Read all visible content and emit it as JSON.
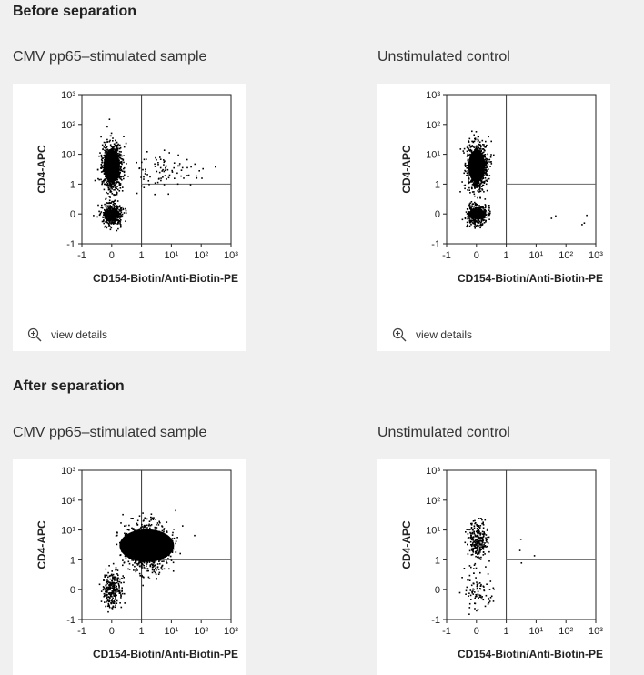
{
  "sections": [
    {
      "title": "Before separation",
      "panels": [
        {
          "caption": "CMV pp65–stimulated sample",
          "details": "view details"
        },
        {
          "caption": "Unstimulated control",
          "details": "view details"
        }
      ]
    },
    {
      "title": "After separation",
      "panels": [
        {
          "caption": "CMV pp65–stimulated sample",
          "details": ""
        },
        {
          "caption": "Unstimulated control",
          "details": ""
        }
      ]
    }
  ],
  "chart_data": [
    {
      "type": "scatter",
      "xlabel": "CD154-Biotin/Anti-Biotin-PE",
      "ylabel": "CD4-APC",
      "x_ticks": [
        "-1",
        "0",
        "1",
        "10¹",
        "10²",
        "10³"
      ],
      "y_ticks": [
        "-1",
        "0",
        "1",
        "10¹",
        "10²",
        "10³"
      ],
      "scale": "biexponential",
      "gates": {
        "x": 1,
        "y": 1
      },
      "populations": [
        {
          "x": 0,
          "y": 4,
          "density": "very high"
        },
        {
          "x": 0,
          "y": 0,
          "density": "high"
        },
        {
          "x": 5,
          "y": 3,
          "density": "low"
        }
      ]
    },
    {
      "type": "scatter",
      "xlabel": "CD154-Biotin/Anti-Biotin-PE",
      "ylabel": "CD4-APC",
      "x_ticks": [
        "-1",
        "0",
        "1",
        "10¹",
        "10²",
        "10³"
      ],
      "y_ticks": [
        "-1",
        "0",
        "1",
        "10¹",
        "10²",
        "10³"
      ],
      "scale": "biexponential",
      "gates": {
        "x": 1,
        "y": 1
      },
      "populations": [
        {
          "x": 0,
          "y": 4,
          "density": "very high"
        },
        {
          "x": 0,
          "y": 0,
          "density": "high"
        },
        {
          "x": 12,
          "y": 0,
          "density": "very low"
        }
      ]
    },
    {
      "type": "scatter",
      "xlabel": "CD154-Biotin/Anti-Biotin-PE",
      "ylabel": "CD4-APC",
      "x_ticks": [
        "-1",
        "0",
        "1",
        "10¹",
        "10²",
        "10³"
      ],
      "y_ticks": [
        "-1",
        "0",
        "1",
        "10¹",
        "10²",
        "10³"
      ],
      "scale": "biexponential",
      "gates": {
        "x": 1,
        "y": 1
      },
      "populations": [
        {
          "x": 1.5,
          "y": 3,
          "density": "very high"
        },
        {
          "x": 0,
          "y": 0,
          "density": "medium"
        }
      ]
    },
    {
      "type": "scatter",
      "xlabel": "CD154-Biotin/Anti-Biotin-PE",
      "ylabel": "CD4-APC",
      "x_ticks": [
        "-1",
        "0",
        "1",
        "10¹",
        "10²",
        "10³"
      ],
      "y_ticks": [
        "-1",
        "0",
        "1",
        "10¹",
        "10²",
        "10³"
      ],
      "scale": "biexponential",
      "gates": {
        "x": 1,
        "y": 1
      },
      "populations": [
        {
          "x": 0,
          "y": 5,
          "density": "medium"
        },
        {
          "x": 0,
          "y": 0,
          "density": "low"
        },
        {
          "x": 8,
          "y": 2,
          "density": "very low"
        }
      ]
    }
  ]
}
